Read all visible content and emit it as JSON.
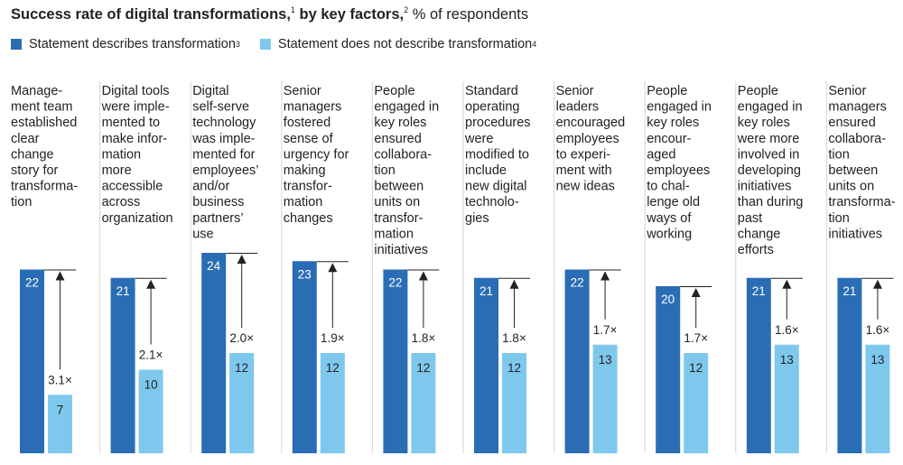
{
  "title": {
    "bold_main": "Success rate of digital transformations,",
    "sup1": "1",
    "bold_second": "by key factors,",
    "sup2": "2",
    "unit": "% of respondents"
  },
  "legend": [
    {
      "label": "Statement describes transformation",
      "sup": "3",
      "color": "#2a6db5"
    },
    {
      "label": "Statement does not describe transformation",
      "sup": "4",
      "color": "#7ec8ee"
    }
  ],
  "chart_data": {
    "type": "bar",
    "series": [
      {
        "name": "Statement describes transformation",
        "color": "#2a6db5",
        "values": [
          22,
          21,
          24,
          23,
          22,
          21,
          22,
          20,
          21,
          21
        ]
      },
      {
        "name": "Statement does not describe transformation",
        "color": "#7ec8ee",
        "values": [
          7,
          10,
          12,
          12,
          12,
          12,
          13,
          12,
          13,
          13
        ]
      }
    ],
    "ratios": [
      "3.1×",
      "2.1×",
      "2.0×",
      "1.9×",
      "1.8×",
      "1.8×",
      "1.7×",
      "1.7×",
      "1.6×",
      "1.6×"
    ],
    "categories": [
      [
        "Manage-",
        "ment team",
        "established",
        "clear",
        "change",
        "story for",
        "transforma-",
        "tion"
      ],
      [
        "Digital tools",
        "were imple-",
        "mented to",
        "make infor-",
        "mation",
        "more",
        "accessible",
        "across",
        "organization"
      ],
      [
        "Digital",
        "self-serve",
        "technology",
        "was imple-",
        "mented for",
        "employees’",
        "and/or",
        "business",
        "partners’",
        "use"
      ],
      [
        "Senior",
        "managers",
        "fostered",
        "sense of",
        "urgency for",
        "making",
        "transfor-",
        "mation",
        "changes"
      ],
      [
        "People",
        "engaged in",
        "key roles",
        "ensured",
        "collabora-",
        "tion",
        "between",
        "units on",
        "transfor-",
        "mation",
        "initiatives"
      ],
      [
        "Standard",
        "operating",
        "procedures",
        "were",
        "modified to",
        "include",
        "new digital",
        "technolo-",
        "gies"
      ],
      [
        "Senior",
        "leaders",
        "encouraged",
        "employees",
        "to experi-",
        "ment with",
        "new ideas"
      ],
      [
        "People",
        "engaged in",
        "key roles",
        "encour-",
        "aged",
        "employees",
        "to chal-",
        "lenge old",
        "ways of",
        "working"
      ],
      [
        "People",
        "engaged in",
        "key roles",
        "were more",
        "involved in",
        "developing",
        "initiatives",
        "than during",
        "past",
        "change",
        "efforts"
      ],
      [
        "Senior",
        "managers",
        "ensured",
        "collabora-",
        "tion",
        "between",
        "units on",
        "transforma-",
        "tion",
        "initiatives"
      ]
    ]
  }
}
